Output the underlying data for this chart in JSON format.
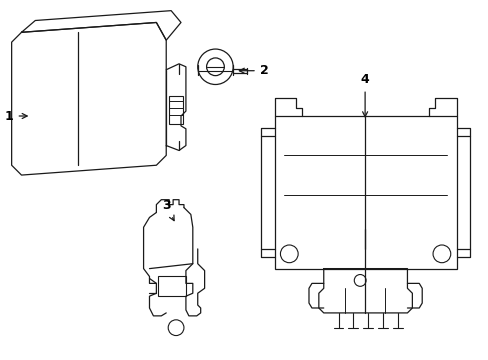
{
  "bg_color": "#ffffff",
  "line_color": "#1a1a1a",
  "line_width": 0.9,
  "fig_width": 4.89,
  "fig_height": 3.6,
  "dpi": 100
}
